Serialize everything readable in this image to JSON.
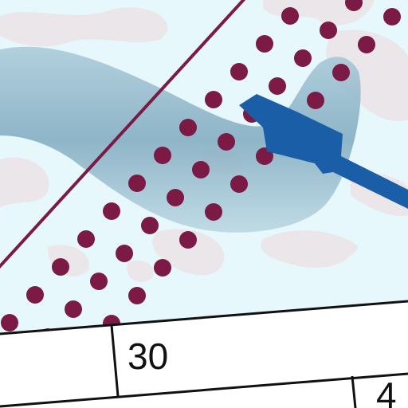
{
  "map": {
    "labels": {
      "center": "30",
      "corner": "4"
    },
    "colors": {
      "background": "#e6f8fb",
      "snow_patches": "#ebe6ea",
      "glacier": "#8fb8cc",
      "boundary_line": "#7a1a45",
      "dot_pattern": "#7a1a45",
      "water_feature": "#1b5ea8",
      "sheet_edge": "#111111",
      "label_bar": "#ffffff"
    },
    "features": [
      "glacier",
      "boundary-line",
      "restricted-zone-dots",
      "water-channel",
      "snow-patches",
      "sheet-index-grid"
    ]
  }
}
